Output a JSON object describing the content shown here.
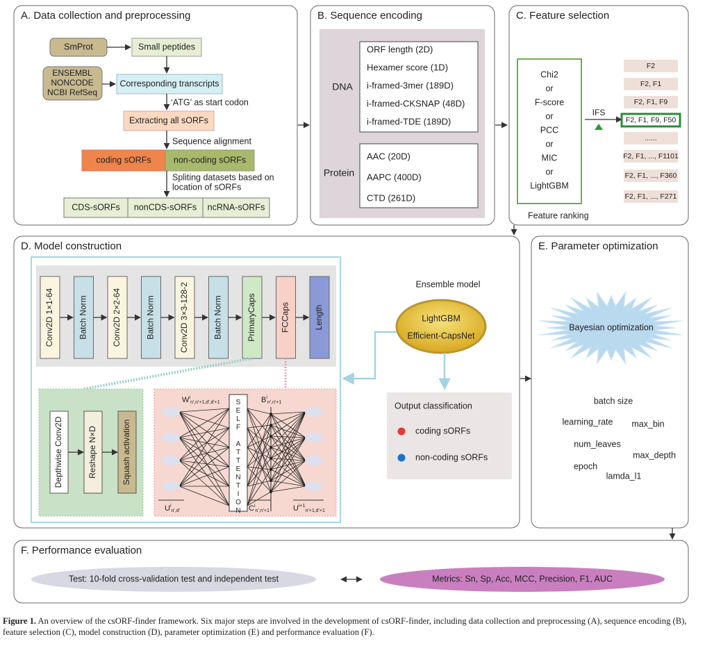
{
  "panels": {
    "a": {
      "title": "A. Data collection and preprocessing",
      "smprot": "SmProt",
      "small_peptides": "Small peptides",
      "databases": [
        "ENSEMBL",
        "NONCODE",
        "NCBI RefSeq"
      ],
      "transcripts": "Corresponding transcripts",
      "start_codon": "‘ATG’ as start codon",
      "extracting": "Extracting all sORFs",
      "alignment": "Sequence alignment",
      "coding": "coding sORFs",
      "noncoding": "non-coding sORFs",
      "splitting": [
        "Spliting datasets based on",
        "location of sORFs"
      ],
      "datasets": [
        "CDS-sORFs",
        "nonCDS-sORFs",
        "ncRNA-sORFs"
      ]
    },
    "b": {
      "title": "B. Sequence encoding",
      "dna_label": "DNA",
      "dna": [
        "ORF length (2D)",
        "Hexamer score (1D)",
        "i-framed-3mer (189D)",
        "i-framed-CKSNAP (48D)",
        "i-framed-TDE (189D)"
      ],
      "protein_label": "Protein",
      "protein": [
        "AAC (20D)",
        "AAPC (400D)",
        "CTD (261D)"
      ]
    },
    "c": {
      "title": "C. Feature selection",
      "methods": [
        "Chi2",
        "or",
        "F-score",
        "or",
        "PCC",
        "or",
        "MIC",
        "or",
        "LightGBM"
      ],
      "ranking": "Feature ranking",
      "ifs": "IFS",
      "subsets": [
        "F2",
        "F2, F1",
        "F2, F1, F9",
        "F2, F1, F9, F50",
        "......",
        "F2, F1, ..., F1101",
        "F2, F1, ..., F360",
        "F2, F1, ..., F271"
      ]
    },
    "d": {
      "title": "D. Model construction",
      "layers": [
        "Conv2D 1×1-64",
        "Batch Norm",
        "Conv2D 2×2-64",
        "Batch Norm",
        "Conv2D 3×3-128-2",
        "Batch Norm",
        "PrimaryCaps",
        "FCCaps",
        "Length"
      ],
      "capsule_layers": [
        "Depthwise Conv2D",
        "Reshape N×D",
        "Squash activation"
      ],
      "self_attention": "SELF ATTENTION",
      "symbols": [
        {
          "base": "W",
          "sup": "i",
          "sub": "n',n'+1,d',d'+1"
        },
        {
          "base": "B",
          "sup": "i",
          "sub": "n',n'+1"
        },
        {
          "base": "U",
          "sup": "i",
          "sub": "n',d'"
        },
        {
          "base": "C",
          "sup": "i",
          "sub": "n',n'+1"
        },
        {
          "base": "U",
          "sup": "i+1",
          "sub": "n'+1,d'+1"
        }
      ],
      "ensemble_title": "Ensemble model",
      "ensemble": [
        "LightGBM",
        "Efficient-CapsNet"
      ],
      "output_title": "Output classification",
      "classes": [
        "coding sORFs",
        "non-coding sORFs"
      ]
    },
    "e": {
      "title": "E. Parameter optimization",
      "method": "Bayesian optimization",
      "parameters": [
        "batch size",
        "learning_rate",
        "max_bin",
        "num_leaves",
        "max_depth",
        "epoch",
        "lamda_l1"
      ]
    },
    "f": {
      "title": "F. Performance evaluation",
      "test": "Test: 10-fold cross-validation test and independent test",
      "metrics": "Metrics: Sn, Sp, Acc, MCC, Precision, F1, AUC"
    }
  },
  "caption": {
    "label": "Figure 1.",
    "text": " An overview of the csORF-finder framework. Six major steps are involved in the development of csORF-finder, including data collection and preprocessing (A), sequence encoding (B), feature selection (C), model construction (D), parameter optimization (E) and performance evaluation (F)."
  }
}
